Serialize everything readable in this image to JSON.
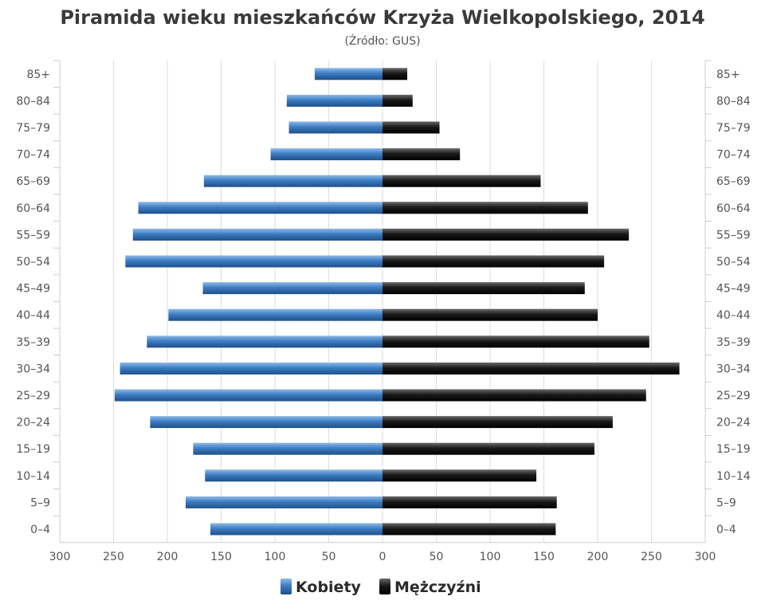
{
  "chart_data": {
    "type": "bar",
    "orientation": "horizontal-pyramid",
    "title": "Piramida wieku mieszkańców Krzyża Wielkopolskiego, 2014",
    "subtitle": "(Źródło: GUS)",
    "categories": [
      "85+",
      "80–84",
      "75–79",
      "70–74",
      "65–69",
      "60–64",
      "55–59",
      "50–54",
      "45–49",
      "40–44",
      "35–39",
      "30–34",
      "25–29",
      "20–24",
      "15–19",
      "10–14",
      "5–9",
      "0–4"
    ],
    "series": [
      {
        "name": "Kobiety",
        "color": "#3d7dc4",
        "values": [
          63,
          89,
          87,
          104,
          166,
          227,
          232,
          239,
          167,
          199,
          219,
          244,
          249,
          216,
          176,
          165,
          183,
          160
        ]
      },
      {
        "name": "Mężczyźni",
        "color": "#1a1a1a",
        "values": [
          23,
          28,
          53,
          72,
          147,
          191,
          229,
          206,
          188,
          200,
          248,
          276,
          245,
          214,
          197,
          143,
          162,
          161
        ]
      }
    ],
    "x_ticks": [
      "300",
      "250",
      "200",
      "150",
      "100",
      "50",
      "0",
      "50",
      "100",
      "150",
      "200",
      "250",
      "300"
    ],
    "xlim": [
      -300,
      300
    ],
    "grid": true,
    "legend_position": "bottom-center"
  }
}
